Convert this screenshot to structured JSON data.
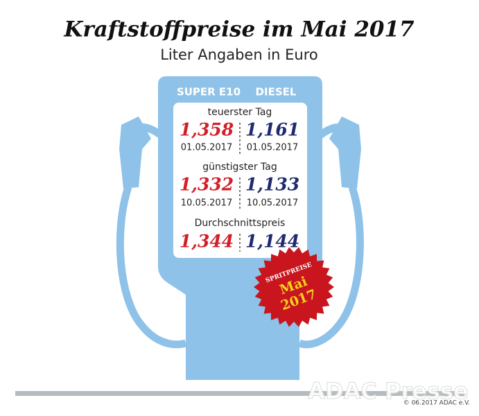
{
  "header": {
    "title": "Kraftstoffpreise im Mai 2017",
    "subtitle": "Liter Angaben in Euro"
  },
  "columns": [
    "SUPER E10",
    "DIESEL"
  ],
  "sections": [
    {
      "label": "teuerster Tag",
      "super": {
        "price": "1,358",
        "date": "01.05.2017"
      },
      "diesel": {
        "price": "1,161",
        "date": "01.05.2017"
      }
    },
    {
      "label": "günstigster Tag",
      "super": {
        "price": "1,332",
        "date": "10.05.2017"
      },
      "diesel": {
        "price": "1,133",
        "date": "10.05.2017"
      }
    },
    {
      "label": "Durchschnittspreis",
      "super": {
        "price": "1,344"
      },
      "diesel": {
        "price": "1,144"
      }
    }
  ],
  "badge": {
    "top": "SPRITPREISE",
    "middle": "Mai",
    "bottom": "2017"
  },
  "footer": {
    "watermark": "ADAC Presse",
    "copyright": "© 06.2017 ADAC e.V."
  }
}
